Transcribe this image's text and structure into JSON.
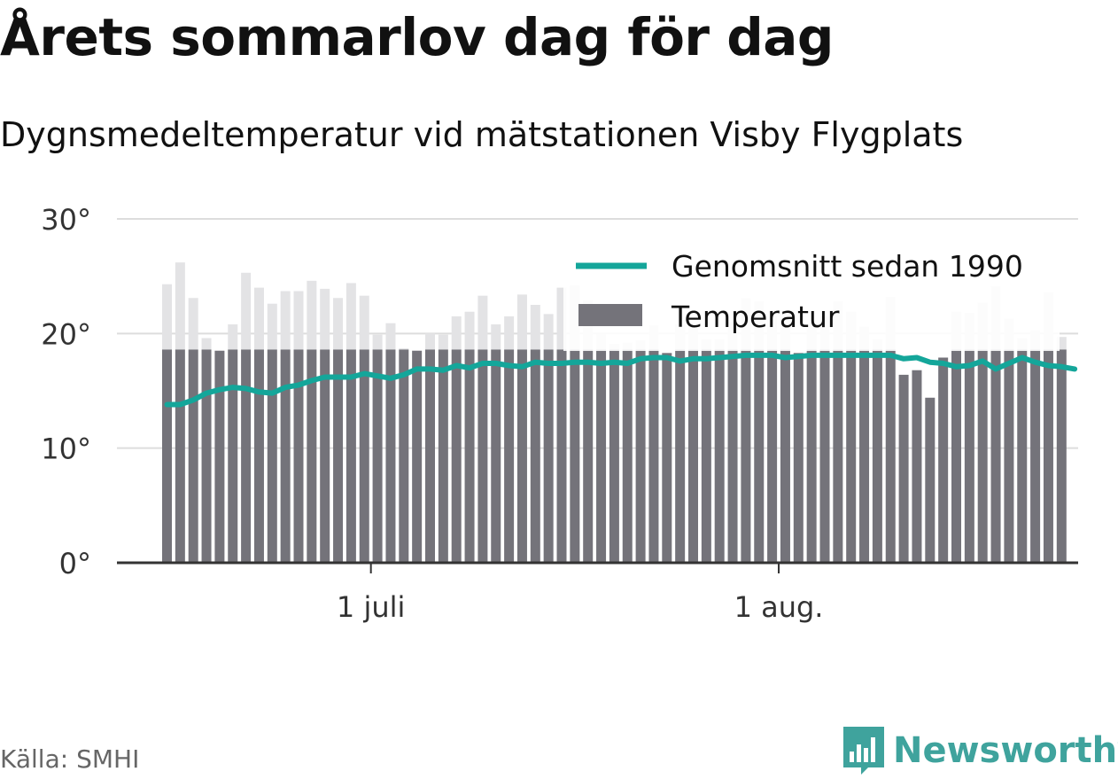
{
  "title": "Årets sommarlov dag för dag",
  "subtitle": "Dygnsmedeltemperatur vid mätstationen Visby Flygplats",
  "source": "Källa: SMHI",
  "logo": {
    "name": "Newsworthy",
    "icon": "bar-chart-logo-icon",
    "color": "#3fa39d"
  },
  "chart_data": {
    "type": "bar",
    "ylim": [
      0,
      30
    ],
    "yticks": [
      0,
      10,
      20,
      30
    ],
    "ytick_labels": [
      "0°",
      "10°",
      "20°",
      "30°"
    ],
    "x_start_date": "2018-06-15",
    "xticks": [
      {
        "date": "2018-07-01",
        "label": "1 juli"
      },
      {
        "date": "2018-08-01",
        "label": "1 aug."
      }
    ],
    "legend_position": "top-right",
    "grid": true,
    "colors": {
      "bar": "#74737a",
      "bar_above_avg_highlight": "#e3e3e5",
      "line": "#14a69a",
      "grid": "#dddddd",
      "axis": "#333333"
    },
    "series": [
      {
        "name": "Temperatur",
        "type": "bar",
        "values": [
          24.3,
          26.2,
          23.1,
          19.6,
          18.5,
          20.8,
          25.3,
          24.0,
          22.6,
          23.7,
          23.7,
          24.6,
          23.9,
          23.1,
          24.4,
          23.3,
          19.9,
          20.9,
          18.7,
          18.5,
          20.0,
          19.9,
          21.5,
          21.9,
          23.3,
          20.8,
          21.5,
          23.4,
          22.5,
          21.7,
          24.0,
          24.2,
          22.9,
          19.9,
          19.1,
          19.2,
          19.4,
          20.7,
          18.3,
          20.8,
          20.8,
          19.5,
          19.5,
          21.0,
          23.1,
          22.8,
          21.5,
          20.5,
          18.3,
          20.9,
          21.5,
          22.8,
          21.9,
          20.6,
          19.5,
          23.2,
          16.4,
          16.8,
          14.4,
          17.9,
          21.9,
          21.8,
          22.7,
          24.1,
          21.3,
          19.6,
          20.3,
          23.6,
          19.7
        ]
      },
      {
        "name": "Genomsnitt sedan 1990",
        "type": "line",
        "values": [
          13.8,
          13.8,
          14.2,
          14.8,
          15.1,
          15.3,
          15.2,
          14.9,
          14.8,
          15.3,
          15.5,
          15.9,
          16.2,
          16.2,
          16.2,
          16.5,
          16.3,
          16.1,
          16.4,
          16.9,
          16.9,
          16.8,
          17.2,
          17.0,
          17.4,
          17.4,
          17.2,
          17.1,
          17.5,
          17.4,
          17.4,
          17.5,
          17.5,
          17.4,
          17.5,
          17.4,
          17.8,
          17.9,
          17.9,
          17.6,
          17.8,
          17.8,
          17.9,
          18.0,
          18.1,
          18.1,
          18.1,
          17.9,
          18.0,
          18.1,
          18.1,
          18.1,
          18.1,
          18.1,
          18.1,
          18.1,
          17.8,
          17.9,
          17.5,
          17.4,
          17.1,
          17.2,
          17.6,
          16.9,
          17.4,
          17.9,
          17.5,
          17.2,
          17.1,
          16.9
        ]
      }
    ]
  }
}
